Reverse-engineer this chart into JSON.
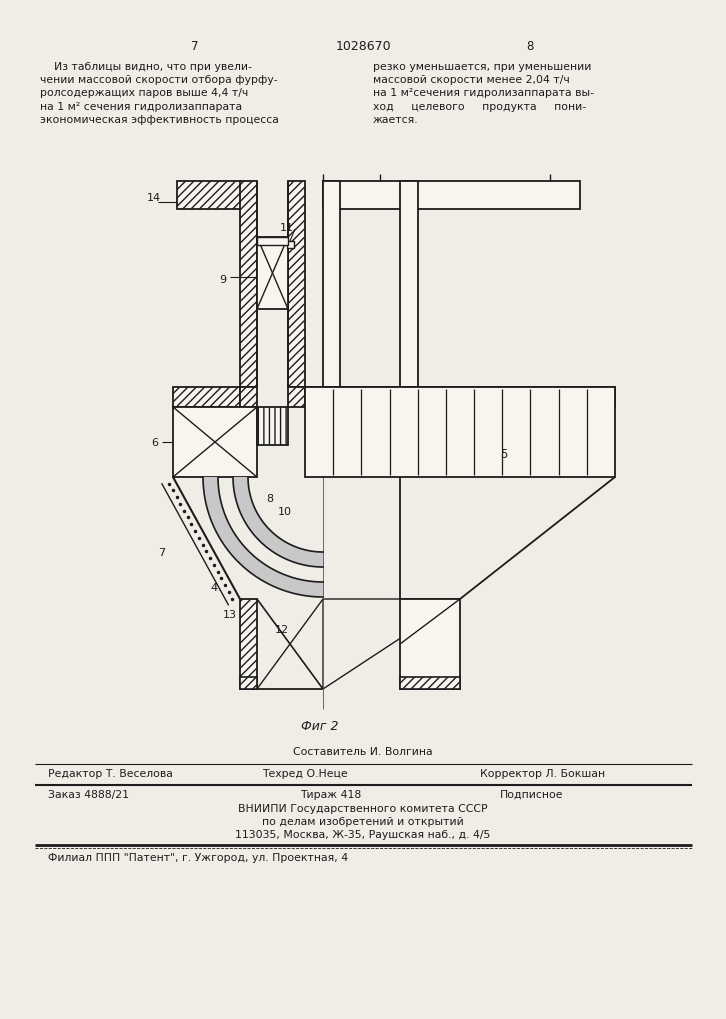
{
  "page_width": 7.07,
  "page_height": 10.0,
  "bg_color": "#f0ede6",
  "header_text": "1028670",
  "page_left": "7",
  "page_right": "8",
  "text_left": "    Из таблицы видно, что при увели-\nчении массовой скорости отбора фурфу-\nролсодержащих паров выше 4,4 т/ч\nна 1 м² сечения гидролизаппарата\nэкономическая эффективность процесса",
  "text_right": "резко уменьшается, при уменьшении\nмассовой скорости менее 2,04 т/ч\nна 1 м²сечения гидролизаппарата вы-\nход     целевого     продукта     пони-\nжается.",
  "fig_caption": "Фиг 2",
  "footer_editor": "Редактор Т. Веселова",
  "footer_techred": "Техред О.Неце",
  "footer_correktor": "Корректор Л. Бокшан",
  "footer_sostavitel": "Составитель И. Волгина",
  "footer_zakaz": "Заказ 4888/21",
  "footer_tirazh": "Тираж 418",
  "footer_podpisnoe": "Подписное",
  "footer_vniipii": "ВНИИПИ Государственного комитета СССР",
  "footer_po_delam": "по делам изобретений и открытий",
  "footer_address": "113035, Москва, Ж-35, Раушская наб., д. 4/5",
  "footer_filial": "Филиал ППП \"Патент\", г. Ужгород, ул. Проектная, 4"
}
